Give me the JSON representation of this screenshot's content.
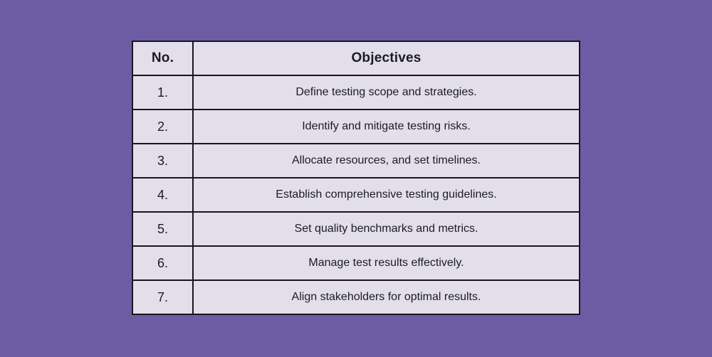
{
  "page": {
    "background_color": "#6d5ca4"
  },
  "table": {
    "columns": [
      {
        "label": "No."
      },
      {
        "label": "Objectives"
      }
    ],
    "rows": [
      {
        "no": "1.",
        "objective": "Define testing scope and strategies."
      },
      {
        "no": "2.",
        "objective": "Identify and mitigate testing risks."
      },
      {
        "no": "3.",
        "objective": "Allocate resources, and set timelines."
      },
      {
        "no": "4.",
        "objective": "Establish comprehensive testing guidelines."
      },
      {
        "no": "5.",
        "objective": "Set quality benchmarks and metrics."
      },
      {
        "no": "6.",
        "objective": "Manage test results effectively."
      },
      {
        "no": "7.",
        "objective": "Align stakeholders for optimal results."
      }
    ],
    "colors": {
      "cell_background": "#e2dfeb",
      "border": "#17141f",
      "text": "#1c1b22"
    }
  },
  "chart_data": {
    "type": "table",
    "columns": [
      "No.",
      "Objectives"
    ],
    "rows": [
      [
        "1.",
        "Define testing scope and strategies."
      ],
      [
        "2.",
        "Identify and mitigate testing risks."
      ],
      [
        "3.",
        "Allocate resources, and set timelines."
      ],
      [
        "4.",
        "Establish comprehensive testing guidelines."
      ],
      [
        "5.",
        "Set quality benchmarks and metrics."
      ],
      [
        "6.",
        "Manage test results effectively."
      ],
      [
        "7.",
        "Align stakeholders for optimal results."
      ]
    ],
    "layout": {
      "grid": true,
      "header_bold": true,
      "cell_text_align": "center"
    }
  }
}
